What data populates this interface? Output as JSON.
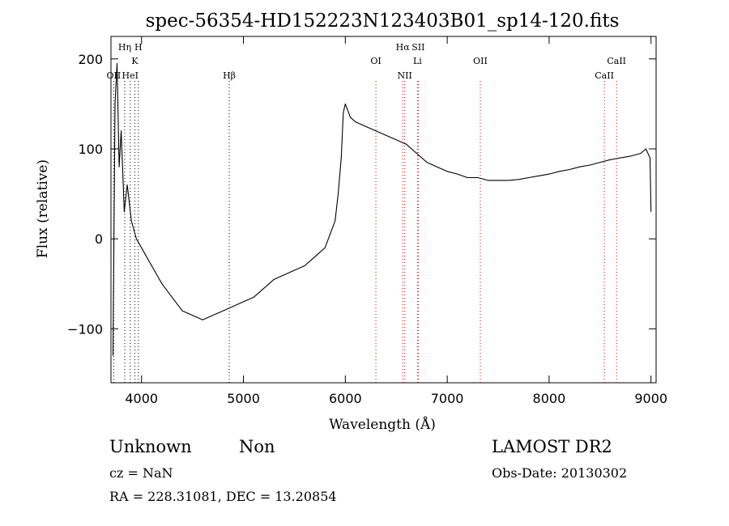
{
  "chart_data": {
    "type": "line",
    "title": "spec-56354-HD152223N123403B01_sp14-120.fits",
    "xlabel": "Wavelength (Å)",
    "ylabel": "Flux (relative)",
    "xlim": [
      3700,
      9050
    ],
    "ylim": [
      -160,
      225
    ],
    "x_ticks": [
      4000,
      5000,
      6000,
      7000,
      8000,
      9000
    ],
    "y_ticks": [
      -100,
      0,
      100,
      200
    ],
    "grid": false,
    "series": [
      {
        "x": [
          3720,
          3740,
          3760,
          3780,
          3800,
          3830,
          3860,
          3900,
          3950,
          4000,
          4100,
          4200,
          4300,
          4400,
          4500,
          4600,
          4700,
          4800,
          4900,
          5000,
          5100,
          5200,
          5300,
          5400,
          5500,
          5600,
          5700,
          5800,
          5850,
          5900,
          5930,
          5960,
          5980,
          6000,
          6050,
          6100,
          6200,
          6300,
          6400,
          6500,
          6600,
          6700,
          6800,
          6900,
          7000,
          7100,
          7200,
          7300,
          7400,
          7500,
          7600,
          7700,
          7800,
          7900,
          8000,
          8100,
          8200,
          8300,
          8400,
          8500,
          8600,
          8700,
          8800,
          8900,
          8950,
          8990,
          9000
        ],
        "y": [
          -130,
          150,
          195,
          80,
          120,
          30,
          60,
          20,
          0,
          -10,
          -30,
          -50,
          -65,
          -80,
          -85,
          -90,
          -85,
          -80,
          -75,
          -70,
          -65,
          -55,
          -45,
          -40,
          -35,
          -30,
          -20,
          -10,
          5,
          20,
          50,
          90,
          140,
          150,
          135,
          130,
          125,
          120,
          115,
          110,
          105,
          95,
          85,
          80,
          75,
          72,
          68,
          68,
          65,
          65,
          65,
          66,
          68,
          70,
          72,
          75,
          77,
          80,
          82,
          85,
          88,
          90,
          92,
          95,
          100,
          90,
          30
        ]
      }
    ],
    "line_markers": [
      {
        "label": "OII",
        "x": 3727,
        "row": 3,
        "color": "#000000"
      },
      {
        "label": "Hη",
        "x": 3835,
        "row": 1,
        "color": "#000000"
      },
      {
        "label": "H",
        "x": 3969,
        "row": 1,
        "color": "#000000"
      },
      {
        "label": "K",
        "x": 3934,
        "row": 2,
        "color": "#000000"
      },
      {
        "label": "HeI",
        "x": 3889,
        "row": 3,
        "color": "#000000"
      },
      {
        "label": "Hβ",
        "x": 4861,
        "row": 3,
        "color": "#000000"
      },
      {
        "label": "OI",
        "x": 6300,
        "row": 2,
        "color": "#cc0000"
      },
      {
        "label": "Hα",
        "x": 6563,
        "row": 1,
        "color": "#cc0000"
      },
      {
        "label": "SII",
        "x": 6716,
        "row": 1,
        "color": "#cc0000"
      },
      {
        "label": "NII",
        "x": 6583,
        "row": 3,
        "color": "#cc0000"
      },
      {
        "label": "Li",
        "x": 6708,
        "row": 2,
        "color": "#cc0000"
      },
      {
        "label": "OII",
        "x": 7325,
        "row": 2,
        "color": "#cc0000"
      },
      {
        "label": "CaII",
        "x": 8662,
        "row": 2,
        "color": "#cc0000"
      },
      {
        "label": "CaII",
        "x": 8542,
        "row": 3,
        "color": "#cc0000"
      }
    ]
  },
  "footer": {
    "object_class": "Unknown",
    "subclass": "Non",
    "survey": "LAMOST DR2",
    "cz": "cz = NaN",
    "obs_date": "Obs-Date: 20130302",
    "coords": "RA = 228.31081, DEC =  13.20854"
  }
}
